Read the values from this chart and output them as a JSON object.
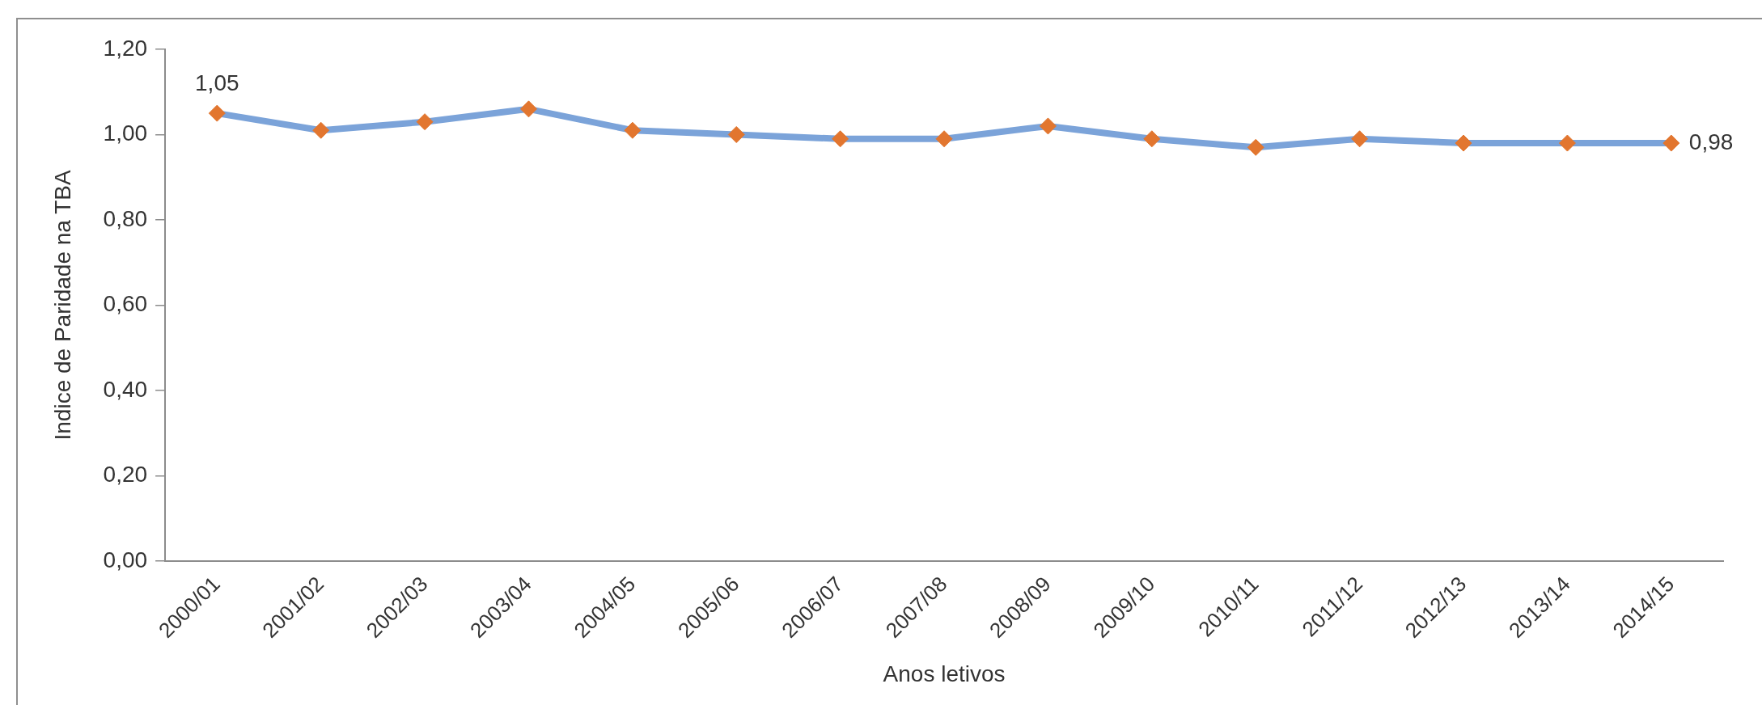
{
  "chart_data": {
    "type": "line",
    "xlabel": "Anos letivos",
    "ylabel": "Indice de Paridade na TBA",
    "categories": [
      "2000/01",
      "2001/02",
      "2002/03",
      "2003/04",
      "2004/05",
      "2005/06",
      "2006/07",
      "2007/08",
      "2008/09",
      "2009/10",
      "2010/11",
      "2011/12",
      "2012/13",
      "2013/14",
      "2014/15"
    ],
    "series": [
      {
        "color": "#7ba3d9",
        "colors": [
          "#e2762f",
          "#e2762f",
          "#e2762f",
          "#e2762f",
          "#e2762f",
          "#e2762f",
          "#e2762f",
          "#e2762f",
          "#e2762f",
          "#e2762f",
          "#e2762f",
          "#e2762f",
          "#e2762f",
          "#e2762f",
          "#e2762f"
        ],
        "values": [
          1.05,
          1.01,
          1.03,
          1.06,
          1.01,
          1.0,
          0.99,
          0.99,
          1.02,
          0.99,
          0.97,
          0.99,
          0.98,
          0.98,
          0.98
        ],
        "value_labels": [
          "1,05",
          null,
          null,
          null,
          null,
          null,
          null,
          null,
          null,
          null,
          null,
          null,
          null,
          null,
          "0,98"
        ]
      }
    ],
    "ylim": [
      0,
      1.2
    ],
    "yticks": [
      {
        "value": 0,
        "label": "0,00"
      },
      {
        "value": 0.2,
        "label": "0,20"
      },
      {
        "value": 0.4,
        "label": "0,40"
      },
      {
        "value": 0.6,
        "label": "0,60"
      },
      {
        "value": 0.8,
        "label": "0,80"
      },
      {
        "value": 1.0,
        "label": "1,00"
      },
      {
        "value": 1.2,
        "label": "1,20"
      }
    ],
    "grid": false,
    "legend": false,
    "marker": "diamond",
    "line_style": "solid"
  }
}
